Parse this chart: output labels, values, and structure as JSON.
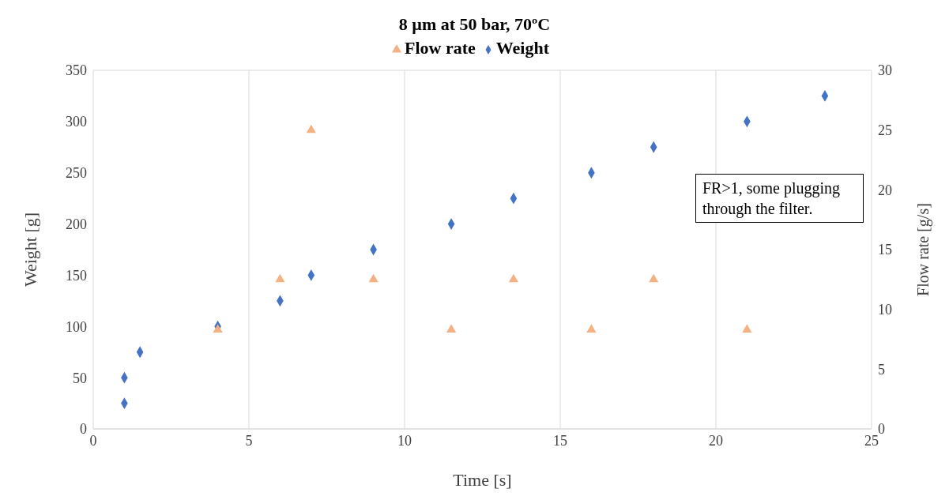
{
  "chart_data": {
    "type": "scatter",
    "title": "8 µm at 50 bar, 70ºC",
    "xlabel": "Time [s]",
    "ylabel": "Weight [g]",
    "y2label": "Flow rate [g/s]",
    "series": [
      {
        "name": "Weight",
        "color": "#4472c4",
        "marker": "diamond",
        "x": [
          1,
          1,
          1.5,
          4,
          6,
          7,
          9,
          11.5,
          13.5,
          16,
          18,
          21,
          23.5
        ],
        "values": [
          25,
          50,
          75,
          100,
          125,
          150,
          175,
          200,
          225,
          250,
          275,
          300,
          325
        ]
      },
      {
        "name": "Flow rate",
        "color": "#f4b183",
        "marker": "triangle",
        "axis": "y2",
        "x": [
          4,
          6,
          7,
          9,
          11.5,
          13.5,
          16,
          18,
          21
        ],
        "values": [
          8.3,
          12.5,
          25,
          12.5,
          8.3,
          12.5,
          8.3,
          12.5,
          8.3
        ]
      }
    ],
    "xlim": [
      0,
      25
    ],
    "xticks": [
      0,
      5,
      10,
      15,
      20,
      25
    ],
    "ylim": [
      0,
      350
    ],
    "yticks": [
      0,
      50,
      100,
      150,
      200,
      250,
      300,
      350
    ],
    "y2lim": [
      0,
      30
    ],
    "y2ticks": [
      0,
      5,
      10,
      15,
      20,
      25,
      30
    ],
    "grid": true,
    "legend": "top",
    "annotations": [
      "FR>1, some plugging through the filter."
    ]
  }
}
